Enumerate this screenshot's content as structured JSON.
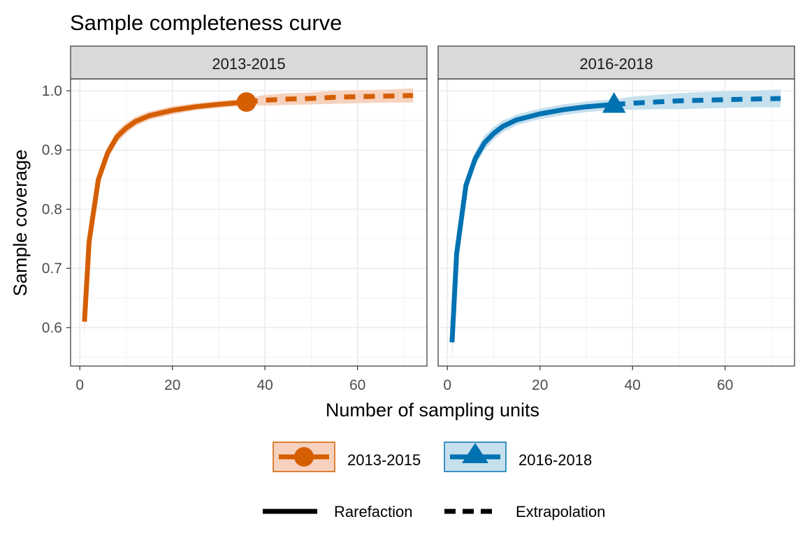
{
  "chart_data": {
    "type": "line",
    "title": "Sample completeness curve",
    "xlabel": "Number of sampling units",
    "ylabel": "Sample coverage",
    "xlim": [
      -2,
      75
    ],
    "ylim": [
      0.535,
      1.02
    ],
    "x_ticks": [
      0,
      20,
      40,
      60
    ],
    "y_ticks": [
      0.6,
      0.7,
      0.8,
      0.9,
      1.0
    ],
    "y_tick_labels": [
      "0.6",
      "0.7",
      "0.8",
      "0.9",
      "1.0"
    ],
    "grid": true,
    "legend_position": "bottom",
    "panels": [
      {
        "label": "2013-2015",
        "color": "#D55E00",
        "band_color": "#F6D2BE",
        "marker": "circle",
        "observed": {
          "x": 36,
          "y": 0.981
        },
        "rarefaction": {
          "x": [
            1,
            2,
            4,
            6,
            8,
            10,
            12,
            15,
            20,
            25,
            30,
            36
          ],
          "y": [
            0.61,
            0.745,
            0.85,
            0.895,
            0.922,
            0.937,
            0.948,
            0.958,
            0.967,
            0.973,
            0.977,
            0.981
          ],
          "lower": [
            0.585,
            0.73,
            0.84,
            0.885,
            0.912,
            0.928,
            0.94,
            0.951,
            0.96,
            0.967,
            0.971,
            0.975
          ],
          "upper": [
            0.635,
            0.76,
            0.86,
            0.905,
            0.932,
            0.946,
            0.956,
            0.965,
            0.974,
            0.979,
            0.983,
            0.987
          ]
        },
        "extrapolation": {
          "x": [
            36,
            40,
            45,
            50,
            55,
            60,
            66,
            72
          ],
          "y": [
            0.981,
            0.984,
            0.986,
            0.987,
            0.989,
            0.99,
            0.991,
            0.992
          ],
          "lower": [
            0.975,
            0.975,
            0.976,
            0.977,
            0.978,
            0.979,
            0.98,
            0.98
          ],
          "upper": [
            0.987,
            0.993,
            0.996,
            0.997,
            1.0,
            1.001,
            1.002,
            1.004
          ]
        }
      },
      {
        "label": "2016-2018",
        "color": "#0072B2",
        "band_color": "#C6E0EE",
        "marker": "triangle",
        "observed": {
          "x": 36,
          "y": 0.977
        },
        "rarefaction": {
          "x": [
            1,
            2,
            4,
            6,
            8,
            10,
            12,
            15,
            20,
            25,
            30,
            36
          ],
          "y": [
            0.575,
            0.725,
            0.84,
            0.885,
            0.912,
            0.928,
            0.94,
            0.951,
            0.961,
            0.968,
            0.973,
            0.977
          ],
          "lower": [
            0.545,
            0.705,
            0.828,
            0.873,
            0.9,
            0.917,
            0.93,
            0.942,
            0.952,
            0.959,
            0.964,
            0.968
          ],
          "upper": [
            0.605,
            0.745,
            0.852,
            0.897,
            0.924,
            0.939,
            0.95,
            0.96,
            0.97,
            0.977,
            0.982,
            0.986
          ]
        },
        "extrapolation": {
          "x": [
            36,
            40,
            45,
            50,
            55,
            60,
            66,
            72
          ],
          "y": [
            0.977,
            0.979,
            0.981,
            0.983,
            0.984,
            0.985,
            0.986,
            0.987
          ],
          "lower": [
            0.968,
            0.968,
            0.969,
            0.969,
            0.97,
            0.971,
            0.972,
            0.972
          ],
          "upper": [
            0.986,
            0.99,
            0.993,
            0.996,
            0.998,
            0.999,
            1.0,
            1.002
          ]
        }
      }
    ],
    "legend": {
      "groups": [
        "2013-2015",
        "2016-2018"
      ],
      "methods": [
        "Rarefaction",
        "Extrapolation"
      ]
    }
  }
}
